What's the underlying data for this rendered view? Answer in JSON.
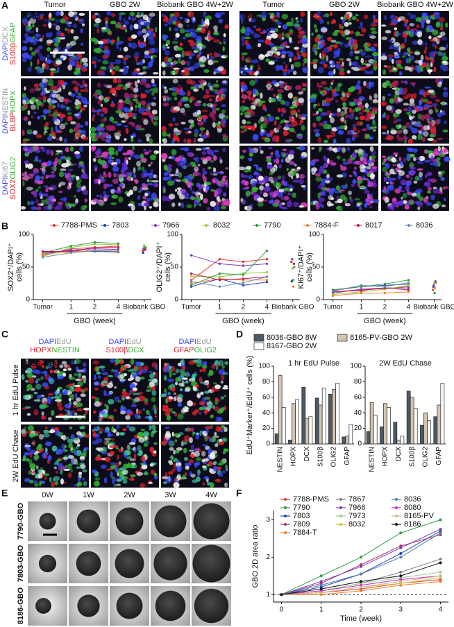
{
  "panel_a": {
    "label": "A",
    "samples": [
      "7966",
      "8036"
    ],
    "columns": [
      "Tumor",
      "GBO 2W",
      "Biobank GBO 4W+2W",
      "Tumor",
      "GBO 2W",
      "Biobank GBO 4W+2W"
    ],
    "rows": [
      [
        [
          {
            "text": "DAPI",
            "color": "#3a4cff"
          },
          {
            "text": "DCX",
            "color": "#9a9a9a"
          }
        ],
        [
          {
            "text": "S100β",
            "color": "#e0202a"
          },
          {
            "text": "GFAP",
            "color": "#33b033"
          }
        ]
      ],
      [
        [
          {
            "text": "DAPI",
            "color": "#3a4cff"
          },
          {
            "text": "NESTIN",
            "color": "#9a9a9a"
          }
        ],
        [
          {
            "text": "BLBP",
            "color": "#e0202a"
          },
          {
            "text": "HOPX",
            "color": "#33b033"
          }
        ]
      ],
      [
        [
          {
            "text": "DAPI",
            "color": "#3a4cff"
          },
          {
            "text": "KI67",
            "color": "#9a9a9a"
          }
        ],
        [
          {
            "text": "SOX2",
            "color": "#e0202a"
          },
          {
            "text": "OLIG2",
            "color": "#33b033"
          }
        ]
      ]
    ]
  },
  "panel_b": {
    "label": "B"
  },
  "panel_c": {
    "label": "C",
    "sample": "8036-GBO",
    "columns": [
      [
        [
          {
            "text": "DAPI",
            "color": "#3a4cff"
          },
          {
            "text": "EdU",
            "color": "#9a9a9a"
          }
        ],
        [
          {
            "text": "HOPX",
            "color": "#e0202a"
          },
          {
            "text": "NESTIN",
            "color": "#33b033"
          }
        ]
      ],
      [
        [
          {
            "text": "DAPI",
            "color": "#3a4cff"
          },
          {
            "text": "EdU",
            "color": "#9a9a9a"
          }
        ],
        [
          {
            "text": "S100β",
            "color": "#e0202a"
          },
          {
            "text": "DCX",
            "color": "#33b033"
          }
        ]
      ],
      [
        [
          {
            "text": "DAPI",
            "color": "#3a4cff"
          },
          {
            "text": "EdU",
            "color": "#9a9a9a"
          }
        ],
        [
          {
            "text": "GFAP",
            "color": "#e0202a"
          },
          {
            "text": "OLIG2",
            "color": "#33b033"
          }
        ]
      ]
    ],
    "rows": [
      "1 hr EdU Pulse",
      "2W EdU Chase"
    ]
  },
  "panel_d": {
    "label": "D",
    "ylabel": "EdU⁺Marker⁺/EdU⁺ cells (%)"
  },
  "panel_e": {
    "label": "E",
    "columns": [
      "0W",
      "1W",
      "2W",
      "3W",
      "4W"
    ],
    "rows": [
      "7790-GBO",
      "7803-GBO",
      "8186-GBO"
    ]
  },
  "panel_f": {
    "label": "F"
  },
  "chart_data": [
    {
      "type": "line",
      "ylabel": [
        "SOX2⁺/DAPI⁺",
        "cells (%)"
      ],
      "xlabel": "GBO (week)",
      "categories": [
        "Tumor",
        "1",
        "2",
        "4",
        "Biobank GBO"
      ],
      "ylim": [
        0,
        100
      ],
      "yticks": [
        0,
        50,
        100
      ],
      "series": [
        {
          "name": "7788-PMS",
          "color": "#e53935",
          "values": [
            68,
            78,
            80,
            82,
            75
          ]
        },
        {
          "name": "7803",
          "color": "#1f3fbf",
          "values": [
            72,
            75,
            74,
            73,
            72
          ]
        },
        {
          "name": "7966",
          "color": "#7b3fbf",
          "values": [
            70,
            76,
            78,
            77,
            78
          ]
        },
        {
          "name": "8032",
          "color": "#9acd32",
          "values": [
            66,
            80,
            85,
            84,
            83
          ]
        },
        {
          "name": "7790",
          "color": "#2e9e3e",
          "values": [
            72,
            82,
            88,
            86,
            80
          ]
        },
        {
          "name": "7884-F",
          "color": "#f08030",
          "values": [
            70,
            73,
            76,
            75,
            76
          ]
        },
        {
          "name": "8017",
          "color": "#c2185b",
          "values": [
            74,
            74,
            80,
            80,
            77
          ]
        },
        {
          "name": "8036",
          "color": "#6a8caf",
          "values": [
            65,
            72,
            75,
            74,
            80
          ]
        }
      ]
    },
    {
      "type": "line",
      "ylabel": [
        "OLIG2⁺/DAPI⁺",
        "cells (%)"
      ],
      "xlabel": "GBO (week)",
      "categories": [
        "Tumor",
        "1",
        "2",
        "4",
        "Biobank GBO"
      ],
      "ylim": [
        0,
        100
      ],
      "yticks": [
        0,
        50,
        100
      ],
      "series": [
        {
          "color": "#e53935",
          "values": [
            30,
            62,
            58,
            62,
            58
          ]
        },
        {
          "color": "#1f3fbf",
          "values": [
            20,
            32,
            22,
            27,
            28
          ]
        },
        {
          "color": "#7b3fbf",
          "values": [
            68,
            55,
            52,
            55,
            62
          ]
        },
        {
          "color": "#9acd32",
          "values": [
            36,
            35,
            40,
            42,
            48
          ]
        },
        {
          "color": "#2e9e3e",
          "values": [
            22,
            40,
            38,
            75,
            30
          ]
        },
        {
          "color": "#f08030",
          "values": [
            25,
            32,
            30,
            30,
            20
          ]
        },
        {
          "color": "#c2185b",
          "values": [
            40,
            30,
            32,
            35,
            55
          ]
        },
        {
          "color": "#6a8caf",
          "values": [
            28,
            20,
            26,
            35,
            50
          ]
        }
      ]
    },
    {
      "type": "line",
      "ylabel": [
        "KI67⁺/DAPI⁺",
        "cells (%)"
      ],
      "xlabel": "GBO (week)",
      "categories": [
        "Tumor",
        "1",
        "2",
        "4",
        "Biobank GBO"
      ],
      "ylim": [
        0,
        100
      ],
      "yticks": [
        0,
        50,
        100
      ],
      "series": [
        {
          "color": "#e53935",
          "values": [
            12,
            15,
            17,
            20,
            15
          ]
        },
        {
          "color": "#1f3fbf",
          "values": [
            14,
            20,
            22,
            24,
            20
          ]
        },
        {
          "color": "#7b3fbf",
          "values": [
            10,
            16,
            18,
            18,
            22
          ]
        },
        {
          "color": "#9acd32",
          "values": [
            8,
            12,
            16,
            22,
            25
          ]
        },
        {
          "color": "#2e9e3e",
          "values": [
            15,
            20,
            24,
            30,
            10
          ]
        },
        {
          "color": "#f08030",
          "values": [
            6,
            10,
            10,
            12,
            18
          ]
        },
        {
          "color": "#c2185b",
          "values": [
            12,
            14,
            18,
            15,
            28
          ]
        },
        {
          "color": "#6a8caf",
          "values": [
            13,
            22,
            20,
            26,
            26
          ]
        }
      ]
    },
    {
      "type": "bar",
      "title": "1 hr EdU Pulse",
      "categories": [
        "NESTIN",
        "HOPX",
        "DCX",
        "S100β",
        "OLIG2",
        "GFAP"
      ],
      "ylim": [
        0,
        100
      ],
      "yticks": [
        0,
        20,
        40,
        60,
        80,
        100
      ],
      "series": [
        {
          "name": "8036-GBO 8W",
          "color": "#4a5a66",
          "values": [
            13,
            5,
            73,
            59,
            64,
            9
          ]
        },
        {
          "name": "8165-PV-GBO 2W",
          "color": "#d2c4b0",
          "values": [
            88,
            52,
            33,
            50,
            70,
            10
          ]
        },
        {
          "name": "8167-GBO 2W",
          "color": "#ffffff",
          "values": [
            47,
            57,
            35,
            72,
            78,
            25
          ]
        }
      ]
    },
    {
      "type": "bar",
      "title": "2W EdU Chase",
      "categories": [
        "NESTIN",
        "HOPX",
        "DCX",
        "S100β",
        "OLIG2",
        "GFAP"
      ],
      "ylim": [
        0,
        100
      ],
      "yticks": [
        0,
        20,
        40,
        60,
        80,
        100
      ],
      "series": [
        {
          "color": "#4a5a66",
          "values": [
            16,
            22,
            28,
            68,
            24,
            35
          ]
        },
        {
          "color": "#d2c4b0",
          "values": [
            53,
            52,
            5,
            60,
            40,
            50
          ]
        },
        {
          "color": "#ffffff",
          "values": [
            37,
            47,
            10,
            46,
            30,
            78
          ]
        }
      ]
    },
    {
      "type": "line",
      "xlabel": "Time (week)",
      "ylabel": "GBO 2D area ratio",
      "x": [
        0,
        1,
        2,
        3,
        4
      ],
      "xlim": [
        -0.2,
        4.2
      ],
      "xticks": [
        0,
        1,
        2,
        3,
        4
      ],
      "ylim": [
        0.8,
        3.25
      ],
      "yticks": [
        1,
        2,
        3
      ],
      "hline": 1,
      "series": [
        {
          "name": "7788-PMS",
          "color": "#e53935",
          "values": [
            1,
            1.05,
            1.15,
            1.3,
            1.4
          ]
        },
        {
          "name": "7790",
          "color": "#2e9e3e",
          "values": [
            1,
            1.5,
            2.0,
            2.65,
            3.0
          ]
        },
        {
          "name": "7803",
          "color": "#1f3fbf",
          "values": [
            1,
            1.2,
            1.55,
            2.1,
            2.7
          ]
        },
        {
          "name": "7809",
          "color": "#b0306a",
          "values": [
            1,
            1.3,
            1.8,
            2.3,
            2.6
          ]
        },
        {
          "name": "7884-T",
          "color": "#f08030",
          "values": [
            1,
            1.0,
            1.1,
            1.25,
            1.35
          ]
        },
        {
          "name": "7867",
          "color": "#808080",
          "values": [
            1,
            1.1,
            1.3,
            1.6,
            1.95
          ]
        },
        {
          "name": "7966",
          "color": "#7b3fbf",
          "values": [
            1,
            1.35,
            1.75,
            2.25,
            2.75
          ]
        },
        {
          "name": "7973",
          "color": "#8fd18f",
          "values": [
            1,
            1.1,
            1.3,
            1.45,
            1.6
          ]
        },
        {
          "name": "8032",
          "color": "#c8c832",
          "values": [
            1,
            1.05,
            1.2,
            1.3,
            1.45
          ]
        },
        {
          "name": "8036",
          "color": "#4f7fa8",
          "values": [
            1,
            1.25,
            1.55,
            2.0,
            2.65
          ]
        },
        {
          "name": "8080",
          "color": "#d028c8",
          "values": [
            1,
            1.1,
            1.25,
            1.4,
            1.5
          ]
        },
        {
          "name": "8165-PV",
          "color": "#d2b48c",
          "values": [
            1,
            1.05,
            1.2,
            1.35,
            1.5
          ]
        },
        {
          "name": "8186",
          "color": "#111111",
          "values": [
            1,
            1.15,
            1.35,
            1.5,
            1.85
          ]
        }
      ]
    }
  ]
}
